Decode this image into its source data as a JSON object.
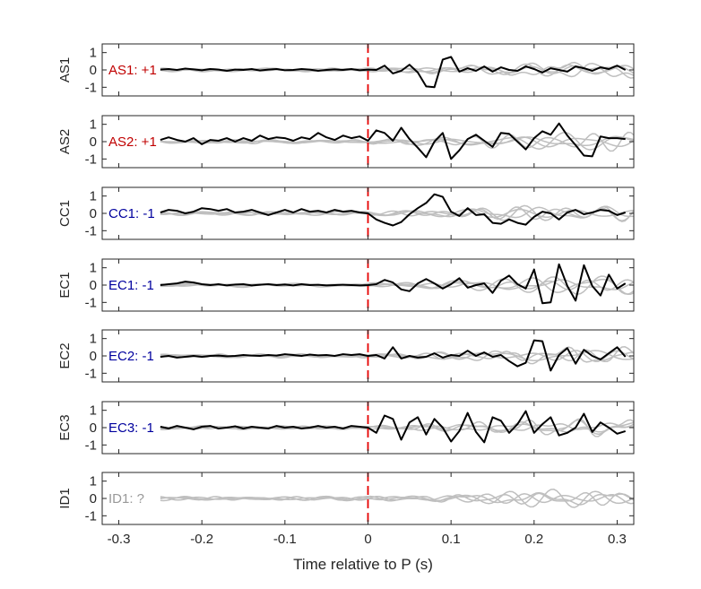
{
  "chart_data": {
    "type": "line",
    "xlabel": "Time relative to P (s)",
    "xlim": [
      -0.32,
      0.32
    ],
    "x_ticks": [
      "-0.3",
      "-0.2",
      "-0.1",
      "0",
      "0.1",
      "0.2",
      "0.3"
    ],
    "x_tick_values": [
      -0.3,
      -0.2,
      -0.1,
      0,
      0.1,
      0.2,
      0.3
    ],
    "ylim": [
      -1.5,
      1.5
    ],
    "y_ticks": [
      "1",
      "0",
      "-1"
    ],
    "y_tick_values": [
      1,
      0,
      -1
    ],
    "marker_line_x": 0,
    "colors": {
      "positive": "#c00000",
      "negative": "#00009e",
      "unknown": "#999999",
      "trace": "#000000",
      "background": "#bfbfbf",
      "marker": "#e60000"
    },
    "panels": [
      {
        "ylabel": "AS1",
        "annotation": "AS1: +1",
        "annotation_color": "#c00000",
        "series": [
          {
            "x": [
              -0.25,
              -0.24,
              -0.23,
              -0.22,
              -0.21,
              -0.2,
              -0.19,
              -0.18,
              -0.17,
              -0.16,
              -0.15,
              -0.14,
              -0.13,
              -0.12,
              -0.11,
              -0.1,
              -0.09,
              -0.08,
              -0.07,
              -0.06,
              -0.05,
              -0.04,
              -0.03,
              -0.02,
              -0.01,
              0,
              0.01,
              0.02,
              0.03,
              0.04,
              0.05,
              0.06,
              0.07,
              0.08,
              0.09,
              0.1,
              0.11,
              0.12,
              0.13,
              0.14,
              0.15,
              0.16,
              0.17,
              0.18,
              0.19,
              0.2,
              0.21,
              0.22,
              0.23,
              0.24,
              0.25,
              0.26,
              0.27,
              0.28,
              0.29,
              0.3,
              0.31
            ],
            "y": [
              0.02,
              0.05,
              0.0,
              0.08,
              0.03,
              -0.02,
              0.05,
              0.02,
              -0.05,
              0.02,
              0.0,
              0.05,
              -0.03,
              0.02,
              0.05,
              -0.02,
              0.0,
              0.05,
              0.02,
              -0.05,
              0.0,
              0.03,
              0.0,
              0.05,
              -0.02,
              0.02,
              0.0,
              0.25,
              -0.2,
              -0.05,
              0.3,
              -0.15,
              -0.95,
              -1.0,
              0.6,
              0.75,
              -0.1,
              0.1,
              -0.05,
              0.2,
              -0.1,
              0.15,
              0.0,
              -0.05,
              0.2,
              0.05,
              -0.15,
              0.1,
              0.0,
              -0.1,
              0.2,
              0.1,
              -0.05,
              0.15,
              0.05,
              0.25,
              0.0
            ]
          }
        ]
      },
      {
        "ylabel": "AS2",
        "annotation": "AS2: +1",
        "annotation_color": "#c00000",
        "series": [
          {
            "x": [
              -0.25,
              -0.24,
              -0.23,
              -0.22,
              -0.21,
              -0.2,
              -0.19,
              -0.18,
              -0.17,
              -0.16,
              -0.15,
              -0.14,
              -0.13,
              -0.12,
              -0.11,
              -0.1,
              -0.09,
              -0.08,
              -0.07,
              -0.06,
              -0.05,
              -0.04,
              -0.03,
              -0.02,
              -0.01,
              0,
              0.01,
              0.02,
              0.03,
              0.04,
              0.05,
              0.06,
              0.07,
              0.08,
              0.09,
              0.1,
              0.11,
              0.12,
              0.13,
              0.14,
              0.15,
              0.16,
              0.17,
              0.18,
              0.19,
              0.2,
              0.21,
              0.22,
              0.23,
              0.24,
              0.25,
              0.26,
              0.27,
              0.28,
              0.29,
              0.3,
              0.31
            ],
            "y": [
              0.1,
              0.25,
              0.1,
              0.0,
              0.2,
              -0.15,
              0.1,
              0.05,
              0.2,
              0.0,
              0.2,
              0.05,
              0.35,
              0.15,
              0.25,
              0.2,
              0.05,
              0.25,
              0.15,
              0.5,
              0.25,
              0.1,
              0.35,
              0.2,
              0.3,
              0.05,
              0.65,
              0.5,
              0.05,
              0.8,
              0.15,
              -0.35,
              -0.9,
              0.0,
              0.5,
              -1.0,
              -0.5,
              0.15,
              0.4,
              0.05,
              -0.3,
              0.5,
              0.45,
              0.0,
              -0.45,
              0.2,
              0.6,
              0.4,
              1.05,
              0.35,
              -0.2,
              -0.8,
              -0.85,
              0.3,
              0.2,
              0.2,
              0.15
            ]
          }
        ]
      },
      {
        "ylabel": "CC1",
        "annotation": "CC1: -1",
        "annotation_color": "#00009e",
        "series": [
          {
            "x": [
              -0.25,
              -0.24,
              -0.23,
              -0.22,
              -0.21,
              -0.2,
              -0.19,
              -0.18,
              -0.17,
              -0.16,
              -0.15,
              -0.14,
              -0.13,
              -0.12,
              -0.11,
              -0.1,
              -0.09,
              -0.08,
              -0.07,
              -0.06,
              -0.05,
              -0.04,
              -0.03,
              -0.02,
              -0.01,
              0,
              0.01,
              0.02,
              0.03,
              0.04,
              0.05,
              0.06,
              0.07,
              0.08,
              0.09,
              0.1,
              0.11,
              0.12,
              0.13,
              0.14,
              0.15,
              0.16,
              0.17,
              0.18,
              0.19,
              0.2,
              0.21,
              0.22,
              0.23,
              0.24,
              0.25,
              0.26,
              0.27,
              0.28,
              0.29,
              0.3,
              0.31
            ],
            "y": [
              0.05,
              0.2,
              0.15,
              0.0,
              0.1,
              0.3,
              0.25,
              0.15,
              0.25,
              0.05,
              0.1,
              0.2,
              0.05,
              -0.1,
              0.05,
              0.2,
              0.05,
              0.25,
              0.1,
              0.15,
              0.05,
              0.2,
              0.1,
              0.15,
              0.05,
              0.0,
              -0.35,
              -0.55,
              -0.7,
              -0.5,
              -0.05,
              0.3,
              0.6,
              1.1,
              0.95,
              0.1,
              -0.15,
              0.3,
              -0.1,
              -0.05,
              -0.55,
              -0.6,
              -0.35,
              -0.55,
              -0.65,
              -0.2,
              0.1,
              0.0,
              -0.35,
              0.05,
              0.2,
              -0.05,
              0.05,
              0.2,
              0.15,
              -0.1,
              0.05
            ]
          }
        ]
      },
      {
        "ylabel": "EC1",
        "annotation": "EC1: -1",
        "annotation_color": "#00009e",
        "series": [
          {
            "x": [
              -0.25,
              -0.24,
              -0.23,
              -0.22,
              -0.21,
              -0.2,
              -0.19,
              -0.18,
              -0.17,
              -0.16,
              -0.15,
              -0.14,
              -0.13,
              -0.12,
              -0.11,
              -0.1,
              -0.09,
              -0.08,
              -0.07,
              -0.06,
              -0.05,
              -0.04,
              -0.03,
              -0.02,
              -0.01,
              0,
              0.01,
              0.02,
              0.03,
              0.04,
              0.05,
              0.06,
              0.07,
              0.08,
              0.09,
              0.1,
              0.11,
              0.12,
              0.13,
              0.14,
              0.15,
              0.16,
              0.17,
              0.18,
              0.19,
              0.2,
              0.21,
              0.22,
              0.23,
              0.24,
              0.25,
              0.26,
              0.27,
              0.28,
              0.29,
              0.3,
              0.31
            ],
            "y": [
              0.0,
              0.05,
              0.1,
              0.2,
              0.15,
              0.05,
              0.0,
              0.05,
              -0.02,
              0.03,
              0.05,
              -0.02,
              0.02,
              0.05,
              0.0,
              0.03,
              -0.02,
              0.05,
              0.0,
              0.02,
              -0.02,
              0.0,
              0.02,
              0.0,
              -0.02,
              0.0,
              0.05,
              0.3,
              0.15,
              -0.25,
              -0.35,
              0.1,
              0.35,
              0.1,
              -0.2,
              0.05,
              0.4,
              -0.15,
              0.0,
              0.1,
              -0.45,
              0.25,
              0.55,
              0.05,
              -0.2,
              0.9,
              -1.05,
              -1.0,
              1.2,
              -0.05,
              -0.9,
              1.15,
              -0.05,
              -0.6,
              0.6,
              -0.2,
              0.1
            ]
          }
        ]
      },
      {
        "ylabel": "EC2",
        "annotation": "EC2: -1",
        "annotation_color": "#00009e",
        "series": [
          {
            "x": [
              -0.25,
              -0.24,
              -0.23,
              -0.22,
              -0.21,
              -0.2,
              -0.19,
              -0.18,
              -0.17,
              -0.16,
              -0.15,
              -0.14,
              -0.13,
              -0.12,
              -0.11,
              -0.1,
              -0.09,
              -0.08,
              -0.07,
              -0.06,
              -0.05,
              -0.04,
              -0.03,
              -0.02,
              -0.01,
              0,
              0.01,
              0.02,
              0.03,
              0.04,
              0.05,
              0.06,
              0.07,
              0.08,
              0.09,
              0.1,
              0.11,
              0.12,
              0.13,
              0.14,
              0.15,
              0.16,
              0.17,
              0.18,
              0.19,
              0.2,
              0.21,
              0.22,
              0.23,
              0.24,
              0.25,
              0.26,
              0.27,
              0.28,
              0.29,
              0.3,
              0.31
            ],
            "y": [
              -0.05,
              0.0,
              -0.1,
              -0.05,
              0.0,
              -0.05,
              0.0,
              0.02,
              -0.02,
              0.0,
              0.05,
              0.02,
              0.0,
              0.05,
              0.02,
              0.1,
              0.05,
              0.0,
              0.08,
              0.03,
              0.05,
              0.0,
              0.1,
              0.05,
              0.1,
              0.0,
              0.05,
              -0.15,
              0.5,
              -0.15,
              0.0,
              -0.1,
              -0.05,
              0.15,
              -0.1,
              0.05,
              0.0,
              0.3,
              0.0,
              0.2,
              -0.05,
              0.05,
              -0.3,
              -0.6,
              -0.4,
              0.9,
              0.85,
              -0.85,
              0.05,
              0.45,
              -0.45,
              0.35,
              0.0,
              -0.2,
              0.15,
              0.5,
              -0.05
            ]
          }
        ]
      },
      {
        "ylabel": "EC3",
        "annotation": "EC3: -1",
        "annotation_color": "#00009e",
        "series": [
          {
            "x": [
              -0.25,
              -0.24,
              -0.23,
              -0.22,
              -0.21,
              -0.2,
              -0.19,
              -0.18,
              -0.17,
              -0.16,
              -0.15,
              -0.14,
              -0.13,
              -0.12,
              -0.11,
              -0.1,
              -0.09,
              -0.08,
              -0.07,
              -0.06,
              -0.05,
              -0.04,
              -0.03,
              -0.02,
              -0.01,
              0,
              0.01,
              0.02,
              0.03,
              0.04,
              0.05,
              0.06,
              0.07,
              0.08,
              0.09,
              0.1,
              0.11,
              0.12,
              0.13,
              0.14,
              0.15,
              0.16,
              0.17,
              0.18,
              0.19,
              0.2,
              0.21,
              0.22,
              0.23,
              0.24,
              0.25,
              0.26,
              0.27,
              0.28,
              0.29,
              0.3,
              0.31
            ],
            "y": [
              0.05,
              -0.05,
              0.1,
              0.0,
              -0.1,
              0.05,
              0.1,
              -0.05,
              0.0,
              0.08,
              -0.05,
              0.05,
              0.0,
              -0.05,
              0.1,
              0.0,
              0.05,
              -0.05,
              0.0,
              0.1,
              0.0,
              0.05,
              -0.05,
              0.1,
              0.05,
              0.0,
              -0.3,
              0.7,
              0.5,
              -0.7,
              0.3,
              0.6,
              -0.4,
              0.5,
              0.0,
              -0.8,
              -0.2,
              0.85,
              -0.25,
              -0.85,
              0.6,
              0.4,
              -0.3,
              0.2,
              0.95,
              -0.3,
              0.2,
              0.6,
              -0.45,
              -0.3,
              0.0,
              0.8,
              -0.25,
              0.3,
              0.0,
              -0.35,
              -0.2
            ]
          }
        ]
      },
      {
        "ylabel": "ID1",
        "annotation": "ID1: ?",
        "annotation_color": "#999999",
        "series": []
      }
    ]
  }
}
